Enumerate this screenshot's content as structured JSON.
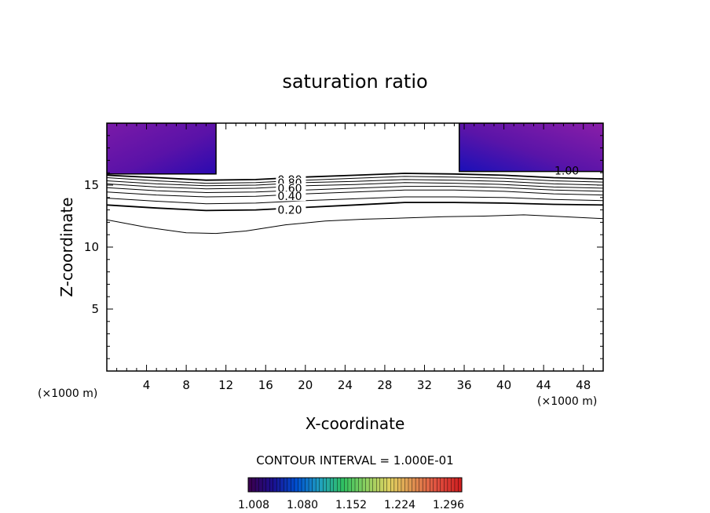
{
  "chart_data": {
    "type": "contour",
    "title": "saturation ratio",
    "xlabel": "X-coordinate",
    "ylabel": "Z-coordinate",
    "x_unit_left": "(×1000 m)",
    "x_unit_right": "(×1000 m)",
    "xlim": [
      0,
      50
    ],
    "ylim": [
      0,
      20
    ],
    "xticks": [
      4,
      8,
      12,
      16,
      20,
      24,
      28,
      32,
      36,
      40,
      44,
      48
    ],
    "yticks": [
      5,
      10,
      15
    ],
    "contour_interval_label": "CONTOUR INTERVAL = 1.000E-01",
    "colorbar": {
      "labels": [
        "1.008",
        "1.080",
        "1.152",
        "1.224",
        "1.296"
      ],
      "colors": [
        "#3a0050",
        "#1a1090",
        "#0050d0",
        "#20a0c0",
        "#30c060",
        "#90d060",
        "#e0d060",
        "#e09050",
        "#e05040",
        "#d02020"
      ]
    },
    "saturated_regions": [
      {
        "x_range": [
          0,
          11
        ],
        "z_range": [
          15.9,
          20
        ],
        "label": ""
      },
      {
        "x_range": [
          35.5,
          50
        ],
        "z_range": [
          16.1,
          20
        ],
        "label": "1.00"
      }
    ],
    "region_colors": {
      "outer": "#7a1aa8",
      "inner": "#2a0ab0"
    },
    "contour_lines": [
      {
        "level": 0.9,
        "label": "0.90",
        "points": [
          [
            0,
            15.8
          ],
          [
            5,
            15.6
          ],
          [
            10,
            15.4
          ],
          [
            15,
            15.45
          ],
          [
            20,
            15.65
          ],
          [
            25,
            15.8
          ],
          [
            30,
            15.95
          ],
          [
            35,
            15.9
          ],
          [
            40,
            15.8
          ],
          [
            45,
            15.6
          ],
          [
            50,
            15.5
          ]
        ]
      },
      {
        "level": 0.8,
        "label": "0.80",
        "points": [
          [
            0,
            15.6
          ],
          [
            5,
            15.35
          ],
          [
            10,
            15.15
          ],
          [
            15,
            15.2
          ],
          [
            20,
            15.4
          ],
          [
            25,
            15.55
          ],
          [
            30,
            15.7
          ],
          [
            35,
            15.65
          ],
          [
            40,
            15.55
          ],
          [
            45,
            15.35
          ],
          [
            50,
            15.25
          ]
        ]
      },
      {
        "level": 0.7,
        "label": "",
        "points": [
          [
            0,
            15.35
          ],
          [
            5,
            15.1
          ],
          [
            10,
            14.95
          ],
          [
            15,
            15.0
          ],
          [
            20,
            15.2
          ],
          [
            25,
            15.3
          ],
          [
            30,
            15.45
          ],
          [
            35,
            15.4
          ],
          [
            40,
            15.3
          ],
          [
            45,
            15.1
          ],
          [
            50,
            15.0
          ]
        ]
      },
      {
        "level": 0.6,
        "label": "0.60",
        "points": [
          [
            0,
            15.1
          ],
          [
            5,
            14.85
          ],
          [
            10,
            14.7
          ],
          [
            15,
            14.75
          ],
          [
            20,
            14.95
          ],
          [
            25,
            15.05
          ],
          [
            30,
            15.2
          ],
          [
            35,
            15.15
          ],
          [
            40,
            15.05
          ],
          [
            45,
            14.85
          ],
          [
            50,
            14.75
          ]
        ]
      },
      {
        "level": 0.5,
        "label": "",
        "points": [
          [
            0,
            14.8
          ],
          [
            5,
            14.55
          ],
          [
            10,
            14.4
          ],
          [
            15,
            14.45
          ],
          [
            20,
            14.6
          ],
          [
            25,
            14.75
          ],
          [
            30,
            14.9
          ],
          [
            35,
            14.9
          ],
          [
            40,
            14.8
          ],
          [
            45,
            14.6
          ],
          [
            50,
            14.5
          ]
        ]
      },
      {
        "level": 0.4,
        "label": "0.40",
        "points": [
          [
            0,
            14.45
          ],
          [
            5,
            14.2
          ],
          [
            10,
            14.05
          ],
          [
            15,
            14.1
          ],
          [
            20,
            14.3
          ],
          [
            25,
            14.45
          ],
          [
            30,
            14.6
          ],
          [
            35,
            14.6
          ],
          [
            40,
            14.5
          ],
          [
            45,
            14.3
          ],
          [
            50,
            14.2
          ]
        ]
      },
      {
        "level": 0.3,
        "label": "",
        "points": [
          [
            0,
            13.95
          ],
          [
            5,
            13.7
          ],
          [
            10,
            13.5
          ],
          [
            15,
            13.55
          ],
          [
            20,
            13.75
          ],
          [
            25,
            13.9
          ],
          [
            30,
            14.05
          ],
          [
            35,
            14.05
          ],
          [
            40,
            14.0
          ],
          [
            45,
            13.85
          ],
          [
            50,
            13.75
          ]
        ]
      },
      {
        "level": 0.2,
        "label": "0.20",
        "points": [
          [
            0,
            13.4
          ],
          [
            5,
            13.15
          ],
          [
            10,
            12.95
          ],
          [
            15,
            13.0
          ],
          [
            20,
            13.2
          ],
          [
            25,
            13.4
          ],
          [
            30,
            13.6
          ],
          [
            35,
            13.6
          ],
          [
            40,
            13.55
          ],
          [
            45,
            13.45
          ],
          [
            50,
            13.4
          ]
        ]
      },
      {
        "level": 0.1,
        "label": "",
        "points": [
          [
            0,
            12.2
          ],
          [
            4,
            11.6
          ],
          [
            8,
            11.15
          ],
          [
            11,
            11.1
          ],
          [
            14,
            11.3
          ],
          [
            18,
            11.8
          ],
          [
            22,
            12.1
          ],
          [
            26,
            12.25
          ],
          [
            30,
            12.35
          ],
          [
            34,
            12.45
          ],
          [
            38,
            12.5
          ],
          [
            42,
            12.6
          ],
          [
            46,
            12.45
          ],
          [
            50,
            12.3
          ]
        ]
      }
    ]
  }
}
